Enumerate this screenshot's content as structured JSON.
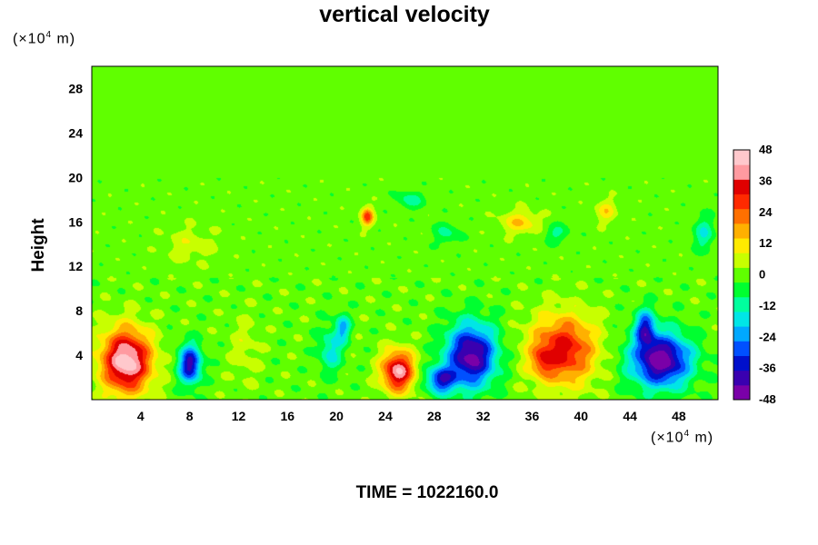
{
  "chart_data": {
    "type": "heatmap",
    "title": "vertical velocity",
    "ylabel": "Height",
    "y_unit_prefix": "(×10",
    "y_unit_exp": "4",
    "y_unit_suffix": " m)",
    "x_unit_prefix": "(×10",
    "x_unit_exp": "4",
    "x_unit_suffix": " m)",
    "xlim": [
      0,
      51.2
    ],
    "ylim": [
      0,
      30
    ],
    "x_ticks": [
      4,
      8,
      12,
      16,
      20,
      24,
      28,
      32,
      36,
      40,
      44,
      48
    ],
    "y_ticks": [
      4,
      8,
      12,
      16,
      20,
      24,
      28
    ],
    "colorbar": {
      "min": -48,
      "max": 48,
      "tick_labels": [
        "48",
        "36",
        "24",
        "12",
        "0",
        "-12",
        "-24",
        "-36",
        "-48"
      ],
      "tick_values": [
        48,
        36,
        24,
        12,
        0,
        -12,
        -24,
        -36,
        -48
      ],
      "colors": [
        "#7a00a8",
        "#3a00b0",
        "#0010cc",
        "#0050ff",
        "#00a8ff",
        "#00e6e6",
        "#00ff9e",
        "#00ff30",
        "#60ff00",
        "#c8ff00",
        "#ffea00",
        "#ffb000",
        "#ff7000",
        "#ff2a00",
        "#e00000",
        "#ff9aa0",
        "#ffc8cc"
      ]
    },
    "features": [
      {
        "x": 2.8,
        "y": 3.5,
        "sx": 2.0,
        "sy": 2.8,
        "value": 48
      },
      {
        "x": 8.0,
        "y": 3.2,
        "sx": 0.9,
        "sy": 1.7,
        "value": -40
      },
      {
        "x": 12.5,
        "y": 4.5,
        "sx": 1.2,
        "sy": 3.0,
        "value": 6
      },
      {
        "x": 19.5,
        "y": 4.5,
        "sx": 1.0,
        "sy": 2.0,
        "value": -16
      },
      {
        "x": 20.5,
        "y": 6.5,
        "sx": 0.6,
        "sy": 1.2,
        "value": -20
      },
      {
        "x": 25.0,
        "y": 2.6,
        "sx": 1.3,
        "sy": 1.8,
        "value": 42
      },
      {
        "x": 31.0,
        "y": 4.0,
        "sx": 2.0,
        "sy": 2.8,
        "value": -46
      },
      {
        "x": 28.5,
        "y": 1.8,
        "sx": 1.2,
        "sy": 1.2,
        "value": -32
      },
      {
        "x": 38.5,
        "y": 4.5,
        "sx": 2.6,
        "sy": 3.0,
        "value": 34
      },
      {
        "x": 36.8,
        "y": 3.5,
        "sx": 0.8,
        "sy": 1.3,
        "value": 14
      },
      {
        "x": 46.5,
        "y": 3.6,
        "sx": 2.4,
        "sy": 2.4,
        "value": -48
      },
      {
        "x": 45.2,
        "y": 6.5,
        "sx": 0.8,
        "sy": 1.6,
        "value": -30
      },
      {
        "x": 22.5,
        "y": 16.5,
        "sx": 0.5,
        "sy": 0.8,
        "value": 28
      },
      {
        "x": 35.0,
        "y": 16.0,
        "sx": 1.5,
        "sy": 1.0,
        "value": 14
      },
      {
        "x": 42.0,
        "y": 17.0,
        "sx": 0.8,
        "sy": 1.0,
        "value": 12
      },
      {
        "x": 38.0,
        "y": 15.0,
        "sx": 1.0,
        "sy": 0.8,
        "value": -10
      },
      {
        "x": 8.0,
        "y": 14.0,
        "sx": 2.0,
        "sy": 1.5,
        "value": 7
      },
      {
        "x": 29.0,
        "y": 15.0,
        "sx": 1.0,
        "sy": 1.0,
        "value": -10
      },
      {
        "x": 26.0,
        "y": 18.0,
        "sx": 1.0,
        "sy": 0.8,
        "value": -12
      },
      {
        "x": 50.0,
        "y": 15.0,
        "sx": 0.8,
        "sy": 1.5,
        "value": -14
      }
    ],
    "time_label": "TIME = 1022160.0"
  }
}
